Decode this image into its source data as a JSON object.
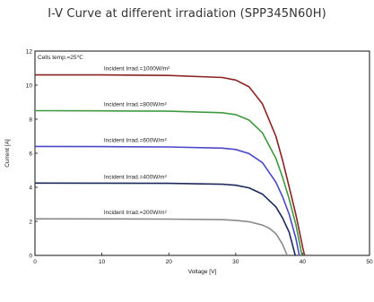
{
  "chart_data": {
    "type": "line",
    "title": "I-V Curve at different irradiation (SPP345N60H)",
    "xlabel": "Voltage [V]",
    "ylabel": "Current [A]",
    "xlim": [
      0,
      50
    ],
    "ylim": [
      0,
      12
    ],
    "x_ticks": [
      "0",
      "10",
      "20",
      "30",
      "40",
      "50"
    ],
    "y_ticks": [
      "0",
      "2",
      "4",
      "6",
      "8",
      "10",
      "12"
    ],
    "annotation": "Cells temp.=25℃",
    "grid": false,
    "series": [
      {
        "name": "Incident Irrad.=1000W/m²",
        "color": "#8b2323",
        "isc": 10.6,
        "voc": 40.3,
        "points": [
          [
            0,
            10.6
          ],
          [
            10,
            10.6
          ],
          [
            20,
            10.57
          ],
          [
            28,
            10.45
          ],
          [
            30,
            10.3
          ],
          [
            32,
            9.9
          ],
          [
            34,
            8.9
          ],
          [
            36,
            7.0
          ],
          [
            37,
            5.6
          ],
          [
            38,
            4.0
          ],
          [
            39,
            2.4
          ],
          [
            40,
            0.5
          ],
          [
            40.3,
            0
          ]
        ]
      },
      {
        "name": "Incident Irrad.=800W/m²",
        "color": "#3f9a3f",
        "isc": 8.5,
        "voc": 39.9,
        "points": [
          [
            0,
            8.5
          ],
          [
            10,
            8.49
          ],
          [
            20,
            8.47
          ],
          [
            28,
            8.38
          ],
          [
            30,
            8.27
          ],
          [
            32,
            7.95
          ],
          [
            34,
            7.2
          ],
          [
            36,
            5.7
          ],
          [
            37,
            4.6
          ],
          [
            38,
            3.3
          ],
          [
            39,
            1.8
          ],
          [
            39.9,
            0
          ]
        ]
      },
      {
        "name": "Incident Irrad.=600W/m²",
        "color": "#4a47c8",
        "isc": 6.4,
        "voc": 39.5,
        "points": [
          [
            0,
            6.4
          ],
          [
            10,
            6.39
          ],
          [
            20,
            6.37
          ],
          [
            28,
            6.3
          ],
          [
            30,
            6.22
          ],
          [
            32,
            5.98
          ],
          [
            34,
            5.45
          ],
          [
            36,
            4.3
          ],
          [
            37,
            3.45
          ],
          [
            38,
            2.4
          ],
          [
            39,
            1.0
          ],
          [
            39.5,
            0
          ]
        ]
      },
      {
        "name": "Incident Irrad.=400W/m²",
        "color": "#1a2a5a",
        "isc": 4.25,
        "voc": 38.9,
        "points": [
          [
            0,
            4.25
          ],
          [
            10,
            4.24
          ],
          [
            20,
            4.23
          ],
          [
            28,
            4.18
          ],
          [
            30,
            4.12
          ],
          [
            32,
            3.97
          ],
          [
            34,
            3.6
          ],
          [
            36,
            2.85
          ],
          [
            37,
            2.2
          ],
          [
            38,
            1.35
          ],
          [
            38.9,
            0
          ]
        ]
      },
      {
        "name": "Incident Irrad.=200W/m²",
        "color": "#8a8a8a",
        "isc": 2.15,
        "voc": 37.7,
        "points": [
          [
            0,
            2.15
          ],
          [
            10,
            2.14
          ],
          [
            20,
            2.13
          ],
          [
            28,
            2.1
          ],
          [
            30,
            2.06
          ],
          [
            32,
            1.98
          ],
          [
            34,
            1.78
          ],
          [
            35,
            1.6
          ],
          [
            36,
            1.28
          ],
          [
            37,
            0.65
          ],
          [
            37.7,
            0
          ]
        ]
      }
    ]
  }
}
